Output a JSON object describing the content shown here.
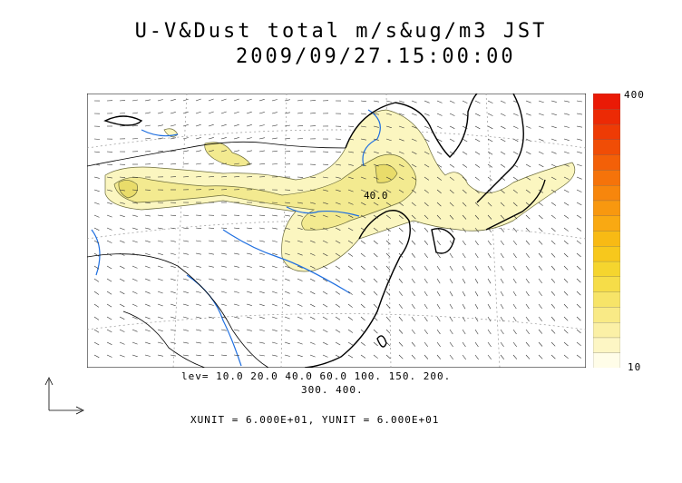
{
  "title": {
    "line1": "U-V&Dust total m/s&ug/m3 JST",
    "line2": "2009/09/27.15:00:00"
  },
  "colorbar": {
    "max_label": "400",
    "min_label": "10"
  },
  "levels": {
    "line1": "lev= 10.0 20.0 40.0 60.0 100. 150. 200.",
    "line2": "300. 400."
  },
  "contour_label": "40.0",
  "units_text": "XUNIT = 6.000E+01, YUNIT = 6.000E+01",
  "colors": {
    "dust_low": "#fbf6c0",
    "dust_mid": "#f3ea90",
    "dust_high": "#e9dc6a",
    "river": "#1f6fe0",
    "coast": "#000000"
  }
}
